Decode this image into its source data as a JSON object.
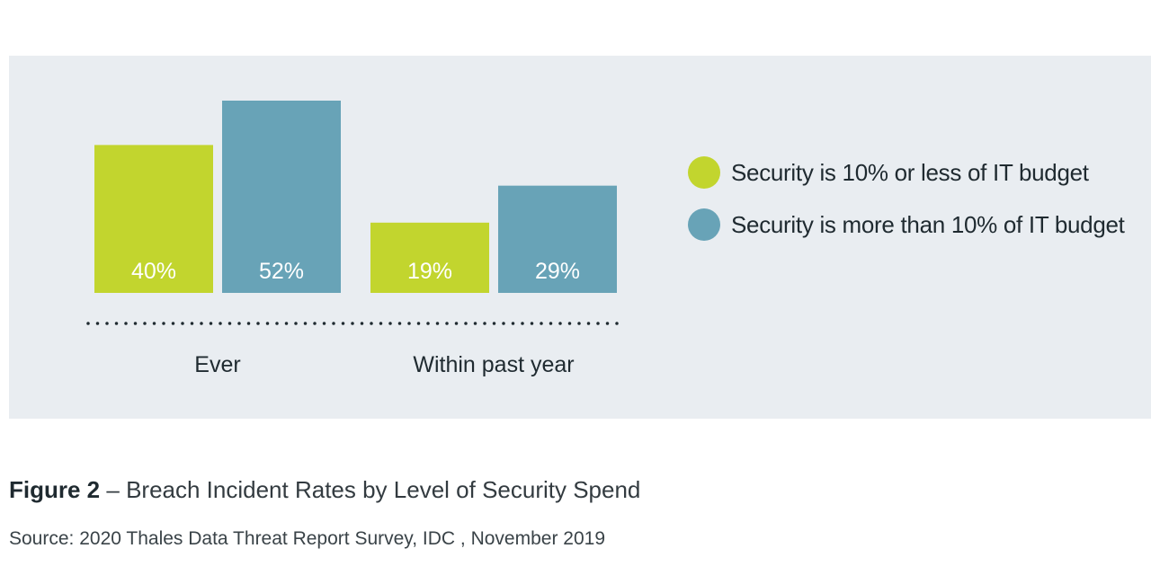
{
  "chart_data": {
    "type": "bar",
    "categories": [
      "Ever",
      "Within past year"
    ],
    "series": [
      {
        "name": "Security is 10% or less of IT budget",
        "values": [
          40,
          19
        ],
        "labels": [
          "40%",
          "19%"
        ],
        "color": "#c2d52e"
      },
      {
        "name": "Security is more than 10% of IT budget",
        "values": [
          52,
          29
        ],
        "labels": [
          "52%",
          "29%"
        ],
        "color": "#68a3b7"
      }
    ],
    "ylim": [
      0,
      60
    ],
    "grid": false,
    "legend_position": "top-right",
    "xlabel": "",
    "ylabel": ""
  },
  "caption": {
    "figure_number": "Figure 2",
    "separator": " – ",
    "title": "Breach Incident Rates by Level of Security Spend"
  },
  "source": "Source: 2020 Thales Data Threat Report Survey, IDC , November 2019",
  "colors": {
    "panel_background": "#e9edf1",
    "label_text": "#ffffff",
    "axis_dots": "#1f2a30"
  }
}
